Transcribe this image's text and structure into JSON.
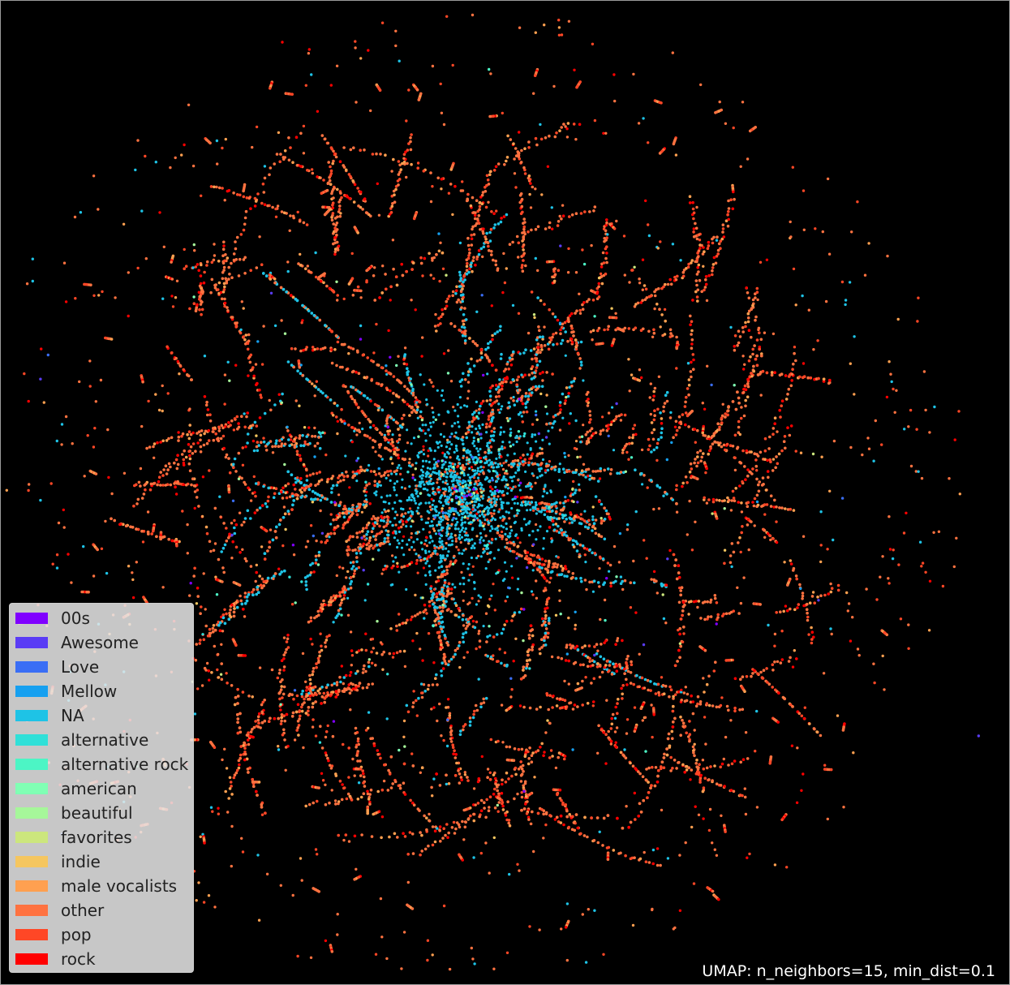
{
  "chart_data": {
    "type": "scatter",
    "title": "",
    "xlabel": "",
    "ylabel": "",
    "background": "#000000",
    "annotation": "UMAP: n_neighbors=15, min_dist=0.1",
    "legend_position": "lower-left",
    "categories": [
      {
        "name": "00s",
        "color": "#8000ff"
      },
      {
        "name": "Awesome",
        "color": "#5a3cf5"
      },
      {
        "name": "Love",
        "color": "#3a6ef5"
      },
      {
        "name": "Mellow",
        "color": "#16a0f0"
      },
      {
        "name": "NA",
        "color": "#1ec3e6"
      },
      {
        "name": "alternative",
        "color": "#30e0d8"
      },
      {
        "name": "alternative rock",
        "color": "#4cf5c5"
      },
      {
        "name": "american",
        "color": "#80ffb4"
      },
      {
        "name": "beautiful",
        "color": "#a6f79a"
      },
      {
        "name": "favorites",
        "color": "#cce67d"
      },
      {
        "name": "indie",
        "color": "#f5c65f"
      },
      {
        "name": "male vocalists",
        "color": "#ffa050"
      },
      {
        "name": "other",
        "color": "#ff7240"
      },
      {
        "name": "pop",
        "color": "#ff4726"
      },
      {
        "name": "rock",
        "color": "#ff0000"
      }
    ],
    "approx_counts": {
      "NA": 2600,
      "other": 3000,
      "pop": 600,
      "rock": 250,
      "male vocalists": 300,
      "others_each": 25
    }
  }
}
